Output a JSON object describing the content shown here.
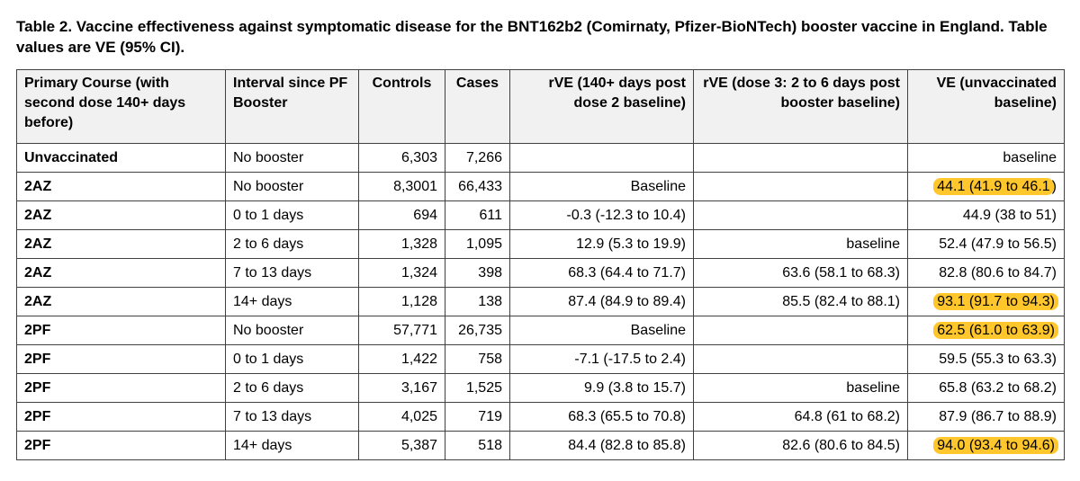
{
  "title": "Table 2. Vaccine effectiveness against symptomatic disease for the BNT162b2 (Comirnaty, Pfizer-BioNTech) booster vaccine in England. Table values are VE (95% CI).",
  "colors": {
    "highlight": "#ffc72c",
    "header_background": "#f1f1f1",
    "border": "#414141"
  },
  "table": {
    "columns": [
      {
        "key": "primary",
        "label": "Primary Course (with second dose 140+ days before)"
      },
      {
        "key": "interval",
        "label": "Interval since PF Booster"
      },
      {
        "key": "controls",
        "label": "Controls"
      },
      {
        "key": "cases",
        "label": "Cases"
      },
      {
        "key": "rve_dose2",
        "label": "rVE (140+ days post dose 2 baseline)"
      },
      {
        "key": "rve_booster",
        "label": "rVE (dose 3: 2 to 6 days post booster baseline)"
      },
      {
        "key": "ve",
        "label": "VE (unvaccinated baseline)"
      }
    ],
    "rows": [
      {
        "primary": "Unvaccinated",
        "interval": "No booster",
        "controls": "6,303",
        "cases": "7,266",
        "rve_dose2": "",
        "rve_booster": "",
        "ve": {
          "text": "baseline",
          "tail": "",
          "highlight": false
        }
      },
      {
        "primary": "2AZ",
        "interval": "No booster",
        "controls": "8,3001",
        "cases": "66,433",
        "rve_dose2": "Baseline",
        "rve_booster": "",
        "ve": {
          "text": "44.1 (41.9 to 46.1",
          "tail": ")",
          "highlight": true
        }
      },
      {
        "primary": "2AZ",
        "interval": "0 to 1 days",
        "controls": "694",
        "cases": "611",
        "rve_dose2": "-0.3 (-12.3 to 10.4)",
        "rve_booster": "",
        "ve": {
          "text": "44.9 (38 to 51)",
          "tail": "",
          "highlight": false
        }
      },
      {
        "primary": "2AZ",
        "interval": "2 to 6 days",
        "controls": "1,328",
        "cases": "1,095",
        "rve_dose2": "12.9 (5.3 to 19.9)",
        "rve_booster": "baseline",
        "ve": {
          "text": "52.4 (47.9 to 56.5)",
          "tail": "",
          "highlight": false
        }
      },
      {
        "primary": "2AZ",
        "interval": "7 to 13 days",
        "controls": "1,324",
        "cases": "398",
        "rve_dose2": "68.3 (64.4 to 71.7)",
        "rve_booster": "63.6 (58.1 to 68.3)",
        "ve": {
          "text": "82.8 (80.6 to 84.7)",
          "tail": "",
          "highlight": false
        }
      },
      {
        "primary": "2AZ",
        "interval": "14+ days",
        "controls": "1,128",
        "cases": "138",
        "rve_dose2": "87.4 (84.9 to 89.4)",
        "rve_booster": "85.5 (82.4 to 88.1)",
        "ve": {
          "text": "93.1 (91.7 to 94.3)",
          "tail": "",
          "highlight": true
        }
      },
      {
        "primary": "2PF",
        "interval": "No booster",
        "controls": "57,771",
        "cases": "26,735",
        "rve_dose2": "Baseline",
        "rve_booster": "",
        "ve": {
          "text": "62.5 (61.0 to 63.9)",
          "tail": "",
          "highlight": true
        }
      },
      {
        "primary": "2PF",
        "interval": "0 to 1 days",
        "controls": "1,422",
        "cases": "758",
        "rve_dose2": "-7.1 (-17.5 to 2.4)",
        "rve_booster": "",
        "ve": {
          "text": "59.5 (55.3 to 63.3)",
          "tail": "",
          "highlight": false
        }
      },
      {
        "primary": "2PF",
        "interval": "2 to 6 days",
        "controls": "3,167",
        "cases": "1,525",
        "rve_dose2": "9.9 (3.8 to 15.7)",
        "rve_booster": "baseline",
        "ve": {
          "text": "65.8 (63.2 to 68.2)",
          "tail": "",
          "highlight": false
        }
      },
      {
        "primary": "2PF",
        "interval": "7 to 13 days",
        "controls": "4,025",
        "cases": "719",
        "rve_dose2": "68.3 (65.5 to 70.8)",
        "rve_booster": "64.8 (61 to 68.2)",
        "ve": {
          "text": "87.9 (86.7 to 88.9)",
          "tail": "",
          "highlight": false
        }
      },
      {
        "primary": "2PF",
        "interval": "14+ days",
        "controls": "5,387",
        "cases": "518",
        "rve_dose2": "84.4 (82.8 to 85.8)",
        "rve_booster": "82.6 (80.6 to 84.5)",
        "ve": {
          "text": "94.0 (93.4 to 94.6)",
          "tail": "",
          "highlight": true
        }
      }
    ]
  }
}
